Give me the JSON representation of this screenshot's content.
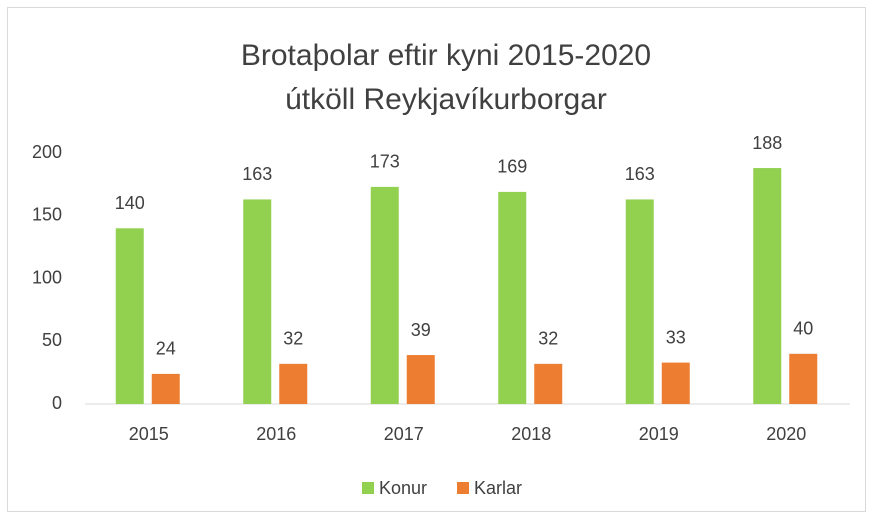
{
  "chart_data": {
    "type": "bar",
    "title": [
      "Brotaþolar eftir kyni 2015-2020",
      "útköll Reykjavíkurborgar"
    ],
    "categories": [
      "2015",
      "2016",
      "2017",
      "2018",
      "2019",
      "2020"
    ],
    "series": [
      {
        "name": "Konur",
        "color": "#92d050",
        "values": [
          140,
          163,
          173,
          169,
          163,
          188
        ]
      },
      {
        "name": "Karlar",
        "color": "#ed7d31",
        "values": [
          24,
          32,
          39,
          32,
          33,
          40
        ]
      }
    ],
    "ylim": [
      0,
      200
    ],
    "yticks": [
      0,
      50,
      100,
      150,
      200
    ],
    "grid": false,
    "legend": "bottom"
  }
}
